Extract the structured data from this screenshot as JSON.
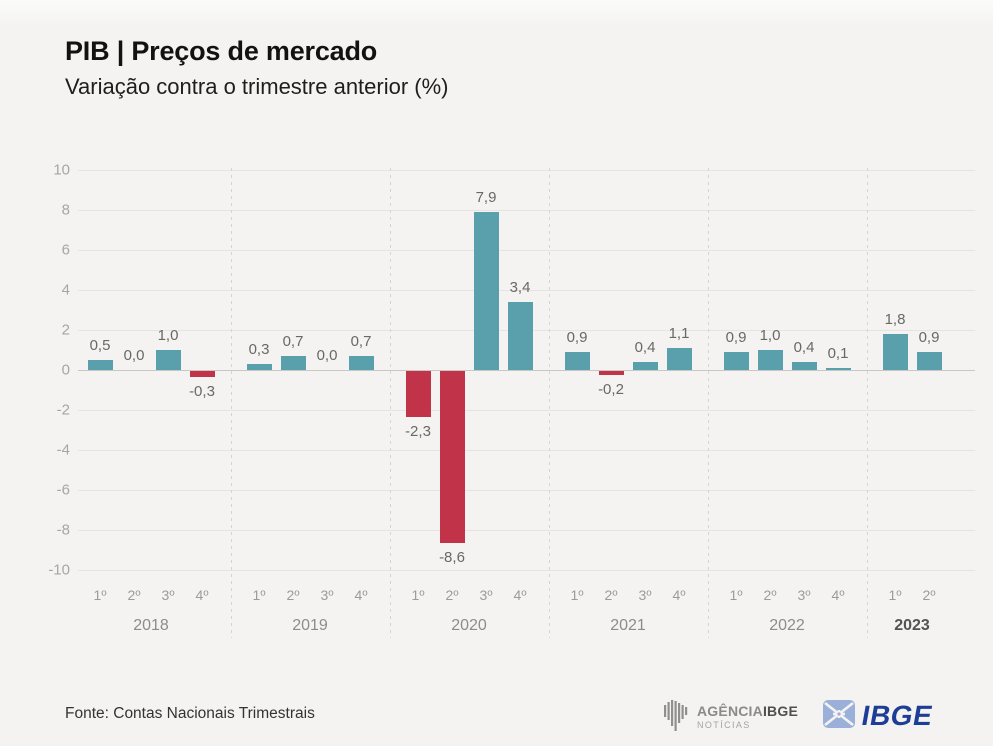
{
  "page": {
    "title": "PIB | Preços de mercado",
    "subtitle": "Variação contra o trimestre anterior (%)",
    "source": "Fonte: Contas Nacionais Trimestrais"
  },
  "footer": {
    "agencia_logo": {
      "word1": "AGÊNCIA",
      "word2": "IBGE",
      "line2": "NOTÍCIAS"
    },
    "ibge_logo_text": "IBGE"
  },
  "chart_data": {
    "type": "bar",
    "title": "PIB | Preços de mercado",
    "subtitle": "Variação contra o trimestre anterior (%)",
    "ylabel": "",
    "xlabel": "",
    "ylim": [
      -10,
      10
    ],
    "yticks": [
      10,
      8,
      6,
      4,
      2,
      0,
      -2,
      -4,
      -6,
      -8,
      -10
    ],
    "grid": true,
    "decimal_separator": "comma",
    "quarter_labels": [
      "1º",
      "2º",
      "3º",
      "4º"
    ],
    "groups": [
      {
        "year": "2018",
        "values": [
          0.5,
          0.0,
          1.0,
          -0.3
        ],
        "labels": [
          "0,5",
          "0,0",
          "1,0",
          "-0,3"
        ],
        "emphasized": false
      },
      {
        "year": "2019",
        "values": [
          0.3,
          0.7,
          0.0,
          0.7
        ],
        "labels": [
          "0,3",
          "0,7",
          "0,0",
          "0,7"
        ],
        "emphasized": false
      },
      {
        "year": "2020",
        "values": [
          -2.3,
          -8.6,
          7.9,
          3.4
        ],
        "labels": [
          "-2,3",
          "-8,6",
          "7,9",
          "3,4"
        ],
        "emphasized": false
      },
      {
        "year": "2021",
        "values": [
          0.9,
          -0.2,
          0.4,
          1.1
        ],
        "labels": [
          "0,9",
          "-0,2",
          "0,4",
          "1,1"
        ],
        "emphasized": false
      },
      {
        "year": "2022",
        "values": [
          0.9,
          1.0,
          0.4,
          0.1
        ],
        "labels": [
          "0,9",
          "1,0",
          "0,4",
          "0,1"
        ],
        "emphasized": false
      },
      {
        "year": "2023",
        "values": [
          1.8,
          0.9
        ],
        "labels": [
          "1,8",
          "0,9"
        ],
        "emphasized": true
      }
    ],
    "colors": {
      "positive": "#5AA0AC",
      "negative": "#C03349"
    },
    "legend": null
  }
}
